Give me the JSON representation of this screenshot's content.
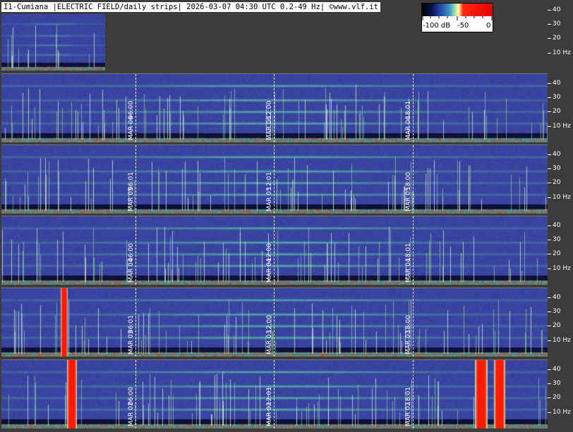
{
  "header": {
    "title": "I1-Cumiana |ELECTRIC FIELD/daily strips| 2026-03-07 04:30 UTC 0.2-49 Hz| ©www.vlf.it"
  },
  "colorbar": {
    "labels": [
      "-100 dB",
      "-50",
      "0"
    ]
  },
  "axis": {
    "labels": [
      "40",
      "30",
      "20",
      "10 Hz"
    ]
  },
  "strips": [
    {
      "id": "partial",
      "markers": []
    },
    {
      "id": "mar06",
      "date": "MAR 06",
      "markers": [
        "06:00",
        "12:00",
        "18:01"
      ],
      "accent": "#3e4aa0"
    },
    {
      "id": "mar05",
      "date": "MAR 05",
      "markers": [
        "06:01",
        "12:01",
        "18:00"
      ]
    },
    {
      "id": "mar04",
      "date": "MAR 04",
      "markers": [
        "06:00",
        "12:00",
        "18:01"
      ]
    },
    {
      "id": "mar03",
      "date": "MAR 03",
      "markers": [
        "06:01",
        "12:00",
        "18:00"
      ]
    },
    {
      "id": "mar02",
      "date": "MAR 02",
      "markers": [
        "06:00",
        "12:01",
        "18:01"
      ]
    }
  ],
  "colors": {
    "background": "#3c3c3c",
    "spectrogram_base": "#3a47a4",
    "line_green": "#6fd6a0",
    "burst_red": "#ff1a00"
  }
}
